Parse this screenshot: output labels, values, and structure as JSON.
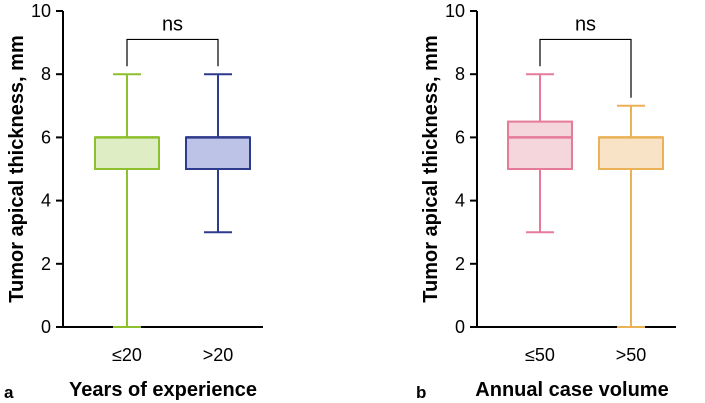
{
  "chart_data": [
    {
      "type": "box",
      "panel_label": "a",
      "xlabel": "Years of experience",
      "ylabel": "Tumor apical thickness, mm",
      "ylim": [
        0,
        10
      ],
      "yticks": [
        0,
        2,
        4,
        6,
        8,
        10
      ],
      "grid": false,
      "categories": [
        "≤20",
        ">20"
      ],
      "boxes": [
        {
          "category": "≤20",
          "min": 0,
          "q1": 5,
          "median": 6,
          "q3": 6,
          "max": 8,
          "color": "#8DBF2E",
          "fill": "#DFEDC4"
        },
        {
          "category": ">20",
          "min": 3,
          "q1": 5,
          "median": 6,
          "q3": 6,
          "max": 8,
          "color": "#2E3A8C",
          "fill": "#BCC3E6"
        }
      ],
      "annotation": {
        "text": "ns",
        "y": 9.1
      }
    },
    {
      "type": "box",
      "panel_label": "b",
      "xlabel": "Annual case volume",
      "ylabel": "Tumor apical thickness, mm",
      "ylim": [
        0,
        10
      ],
      "yticks": [
        0,
        2,
        4,
        6,
        8,
        10
      ],
      "grid": false,
      "categories": [
        "≤50",
        ">50"
      ],
      "boxes": [
        {
          "category": "≤50",
          "min": 3,
          "q1": 5,
          "median": 6,
          "q3": 6.5,
          "max": 8,
          "color": "#E57A9A",
          "fill": "#F5D6DD"
        },
        {
          "category": ">50",
          "min": 0,
          "q1": 5,
          "median": 6,
          "q3": 6,
          "max": 7,
          "color": "#EBB157",
          "fill": "#F8E3C6"
        }
      ],
      "annotation": {
        "text": "ns",
        "y": 9.1
      }
    }
  ]
}
